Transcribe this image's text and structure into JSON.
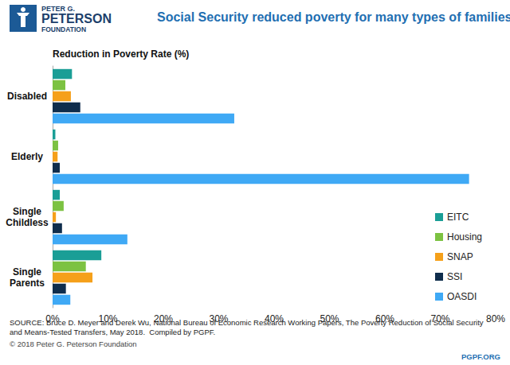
{
  "chart_data": {
    "type": "bar",
    "title": "Social Security reduced poverty for many types of families",
    "subtitle": "Reduction in Poverty Rate (%)",
    "orientation": "horizontal",
    "categories": [
      "Disabled",
      "Elderly",
      "Single Childless",
      "Single Parents"
    ],
    "series": [
      {
        "name": "EITC",
        "color": "#1a9e96",
        "values": [
          3.5,
          0.5,
          1.3,
          8.8
        ]
      },
      {
        "name": "Housing",
        "color": "#7cc242",
        "values": [
          2.3,
          1.0,
          2.0,
          6.0
        ]
      },
      {
        "name": "SNAP",
        "color": "#f5a01a",
        "values": [
          3.3,
          0.9,
          0.6,
          7.2
        ]
      },
      {
        "name": "SSI",
        "color": "#0f2d4c",
        "values": [
          5.0,
          1.3,
          1.7,
          2.4
        ]
      },
      {
        "name": "OASDI",
        "color": "#3fa9f5",
        "values": [
          32.8,
          75.2,
          13.5,
          3.2
        ]
      }
    ],
    "xlim": [
      0,
      80
    ],
    "xticks": [
      {
        "value": 0,
        "label": "0%"
      },
      {
        "value": 10,
        "label": "10%"
      },
      {
        "value": 20,
        "label": "20%"
      },
      {
        "value": 30,
        "label": "30%"
      },
      {
        "value": 40,
        "label": "40%"
      },
      {
        "value": 50,
        "label": "50%"
      },
      {
        "value": 60,
        "label": "60%"
      },
      {
        "value": 70,
        "label": "70%"
      },
      {
        "value": 80,
        "label": "80%"
      }
    ],
    "grid": false,
    "legend": "right",
    "annotations": [
      "PETER G.",
      "PETERSON",
      "FOUNDATION",
      "SOURCE: Bruce D. Meyer and Derek Wu, National Bureau of Economic Research Working Papers, The Poverty Reduction of Social Security and Means-Tested Transfers, May 2018.  Compiled by PGPF.",
      "© 2018 Peter G. Peterson Foundation",
      "PGPF.ORG"
    ]
  }
}
